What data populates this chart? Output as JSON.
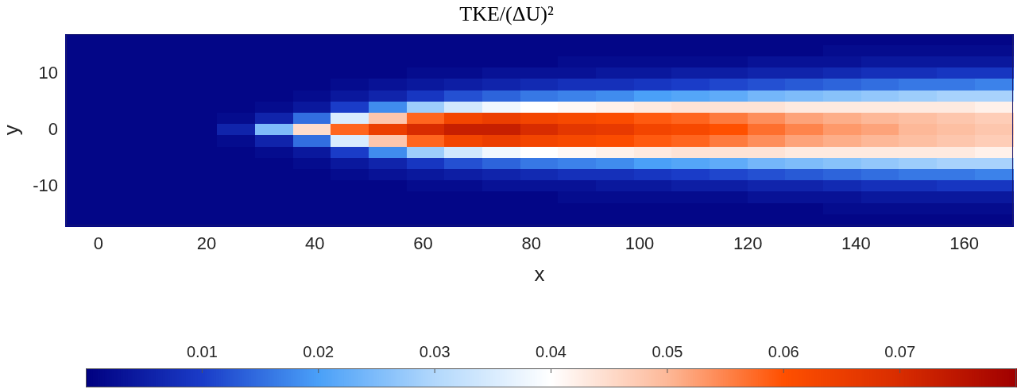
{
  "chart_data": {
    "type": "heatmap",
    "title": "TKE/(ΔU)²",
    "xlabel": "x",
    "ylabel": "y",
    "xlim": [
      -6,
      169
    ],
    "ylim": [
      -17,
      17
    ],
    "xticks": [
      0,
      20,
      40,
      60,
      80,
      100,
      120,
      140,
      160
    ],
    "yticks": [
      -10,
      0,
      10
    ],
    "clim": [
      0,
      0.08
    ],
    "cticks": [
      0.01,
      0.02,
      0.03,
      0.04,
      0.05,
      0.06,
      0.07
    ],
    "cells": [
      [
        0.001,
        0.001,
        0.001,
        0.001,
        0.001,
        0.001,
        0.001,
        0.001,
        0.001,
        0.001,
        0.001,
        0.001,
        0.001,
        0.001,
        0.001,
        0.001,
        0.001,
        0.001,
        0.001,
        0.001,
        0.001,
        0.001,
        0.001,
        0.001,
        0.001
      ],
      [
        0.001,
        0.001,
        0.001,
        0.001,
        0.001,
        0.001,
        0.001,
        0.001,
        0.001,
        0.001,
        0.001,
        0.001,
        0.001,
        0.001,
        0.001,
        0.001,
        0.001,
        0.001,
        0.001,
        0.001,
        0.002,
        0.002,
        0.002,
        0.002,
        0.002
      ],
      [
        0.001,
        0.001,
        0.001,
        0.001,
        0.001,
        0.001,
        0.001,
        0.001,
        0.001,
        0.001,
        0.001,
        0.001,
        0.001,
        0.002,
        0.002,
        0.002,
        0.002,
        0.002,
        0.003,
        0.003,
        0.003,
        0.004,
        0.004,
        0.004,
        0.004
      ],
      [
        0.001,
        0.001,
        0.001,
        0.001,
        0.001,
        0.001,
        0.001,
        0.001,
        0.001,
        0.002,
        0.002,
        0.003,
        0.003,
        0.003,
        0.004,
        0.004,
        0.005,
        0.005,
        0.006,
        0.006,
        0.007,
        0.008,
        0.008,
        0.009,
        0.009
      ],
      [
        0.001,
        0.001,
        0.001,
        0.001,
        0.001,
        0.001,
        0.001,
        0.002,
        0.003,
        0.004,
        0.005,
        0.006,
        0.007,
        0.008,
        0.008,
        0.009,
        0.01,
        0.011,
        0.012,
        0.013,
        0.014,
        0.015,
        0.016,
        0.016,
        0.017
      ],
      [
        0.001,
        0.001,
        0.001,
        0.001,
        0.001,
        0.001,
        0.002,
        0.004,
        0.006,
        0.009,
        0.012,
        0.014,
        0.016,
        0.017,
        0.018,
        0.02,
        0.021,
        0.022,
        0.024,
        0.025,
        0.026,
        0.027,
        0.028,
        0.029,
        0.029
      ],
      [
        0.001,
        0.001,
        0.001,
        0.001,
        0.001,
        0.002,
        0.004,
        0.01,
        0.018,
        0.028,
        0.034,
        0.038,
        0.04,
        0.041,
        0.042,
        0.043,
        0.044,
        0.044,
        0.044,
        0.043,
        0.043,
        0.043,
        0.043,
        0.043,
        0.042
      ],
      [
        0.001,
        0.001,
        0.001,
        0.001,
        0.002,
        0.006,
        0.015,
        0.035,
        0.048,
        0.058,
        0.063,
        0.065,
        0.063,
        0.062,
        0.061,
        0.059,
        0.058,
        0.056,
        0.054,
        0.052,
        0.051,
        0.05,
        0.049,
        0.048,
        0.047
      ],
      [
        0.001,
        0.001,
        0.001,
        0.001,
        0.006,
        0.025,
        0.045,
        0.058,
        0.065,
        0.07,
        0.073,
        0.073,
        0.07,
        0.067,
        0.066,
        0.063,
        0.062,
        0.06,
        0.057,
        0.055,
        0.053,
        0.052,
        0.05,
        0.049,
        0.048
      ],
      [
        0.001,
        0.001,
        0.001,
        0.001,
        0.002,
        0.006,
        0.015,
        0.035,
        0.048,
        0.058,
        0.063,
        0.065,
        0.063,
        0.062,
        0.061,
        0.059,
        0.058,
        0.056,
        0.054,
        0.052,
        0.051,
        0.05,
        0.049,
        0.048,
        0.047
      ],
      [
        0.001,
        0.001,
        0.001,
        0.001,
        0.001,
        0.002,
        0.004,
        0.01,
        0.018,
        0.028,
        0.034,
        0.038,
        0.04,
        0.041,
        0.042,
        0.043,
        0.044,
        0.044,
        0.044,
        0.043,
        0.043,
        0.043,
        0.043,
        0.043,
        0.042
      ],
      [
        0.001,
        0.001,
        0.001,
        0.001,
        0.001,
        0.001,
        0.002,
        0.004,
        0.006,
        0.009,
        0.012,
        0.014,
        0.016,
        0.017,
        0.018,
        0.02,
        0.021,
        0.022,
        0.024,
        0.025,
        0.026,
        0.027,
        0.028,
        0.029,
        0.029
      ],
      [
        0.001,
        0.001,
        0.001,
        0.001,
        0.001,
        0.001,
        0.001,
        0.002,
        0.003,
        0.004,
        0.005,
        0.006,
        0.007,
        0.008,
        0.008,
        0.009,
        0.01,
        0.011,
        0.012,
        0.013,
        0.014,
        0.015,
        0.016,
        0.016,
        0.017
      ],
      [
        0.001,
        0.001,
        0.001,
        0.001,
        0.001,
        0.001,
        0.001,
        0.001,
        0.001,
        0.002,
        0.002,
        0.003,
        0.003,
        0.003,
        0.004,
        0.004,
        0.005,
        0.005,
        0.006,
        0.006,
        0.007,
        0.008,
        0.008,
        0.009,
        0.009
      ],
      [
        0.001,
        0.001,
        0.001,
        0.001,
        0.001,
        0.001,
        0.001,
        0.001,
        0.001,
        0.001,
        0.001,
        0.001,
        0.001,
        0.002,
        0.002,
        0.002,
        0.002,
        0.002,
        0.003,
        0.003,
        0.003,
        0.004,
        0.004,
        0.004,
        0.004
      ],
      [
        0.001,
        0.001,
        0.001,
        0.001,
        0.001,
        0.001,
        0.001,
        0.001,
        0.001,
        0.001,
        0.001,
        0.001,
        0.001,
        0.001,
        0.001,
        0.001,
        0.001,
        0.001,
        0.001,
        0.001,
        0.002,
        0.002,
        0.002,
        0.002,
        0.002
      ],
      [
        0.001,
        0.001,
        0.001,
        0.001,
        0.001,
        0.001,
        0.001,
        0.001,
        0.001,
        0.001,
        0.001,
        0.001,
        0.001,
        0.001,
        0.001,
        0.001,
        0.001,
        0.001,
        0.001,
        0.001,
        0.001,
        0.001,
        0.001,
        0.001,
        0.001
      ]
    ]
  }
}
